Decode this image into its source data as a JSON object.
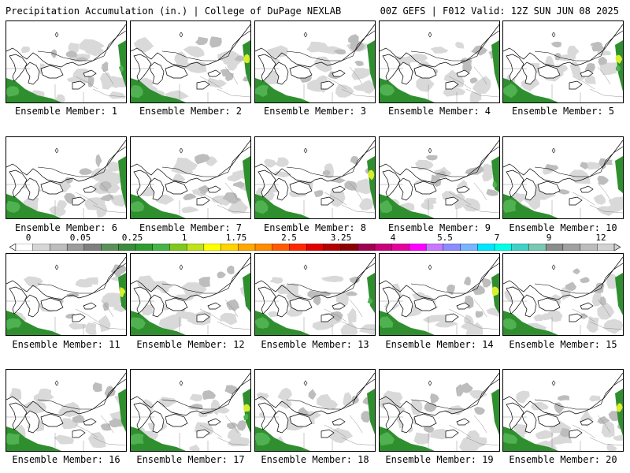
{
  "header": {
    "title": "Precipitation Accumulation (in.) | College of DuPage NEXLAB",
    "run_info": "00Z GEFS | F012 Valid: 12Z SUN JUN 08 2025"
  },
  "colorbar": {
    "labels": [
      "0",
      "0.05",
      "0.25",
      "1",
      "1.75",
      "2.5",
      "3.25",
      "4",
      "5.5",
      "7",
      "9",
      "12"
    ],
    "colors": [
      "#ffffff",
      "#d6d6d6",
      "#bdbdbd",
      "#9c9c9c",
      "#7f7f7f",
      "#5a8f5a",
      "#3c8a3c",
      "#2e9c2e",
      "#47b247",
      "#7fc820",
      "#bfe21a",
      "#ffff00",
      "#ffd400",
      "#ffa800",
      "#ff8c00",
      "#ff5a00",
      "#ff2800",
      "#e00000",
      "#b40000",
      "#8c0000",
      "#a00050",
      "#c8007a",
      "#e6009c",
      "#ff00ff",
      "#c878ff",
      "#8c8cff",
      "#78b4ff",
      "#00e6ff",
      "#00ffe6",
      "#40d0c8",
      "#78c8b4",
      "#8c8c8c",
      "#a0a0a0",
      "#bcbcbc",
      "#d2d2d2"
    ]
  },
  "members": [
    {
      "label": "Ensemble Member: 1"
    },
    {
      "label": "Ensemble Member: 2"
    },
    {
      "label": "Ensemble Member: 3"
    },
    {
      "label": "Ensemble Member: 4"
    },
    {
      "label": "Ensemble Member: 5"
    },
    {
      "label": "Ensemble Member: 6"
    },
    {
      "label": "Ensemble Member: 7"
    },
    {
      "label": "Ensemble Member: 8"
    },
    {
      "label": "Ensemble Member: 9"
    },
    {
      "label": "Ensemble Member: 10"
    },
    {
      "label": "Ensemble Member: 11"
    },
    {
      "label": "Ensemble Member: 12"
    },
    {
      "label": "Ensemble Member: 13"
    },
    {
      "label": "Ensemble Member: 14"
    },
    {
      "label": "Ensemble Member: 15"
    },
    {
      "label": "Ensemble Member: 16"
    },
    {
      "label": "Ensemble Member: 17"
    },
    {
      "label": "Ensemble Member: 18"
    },
    {
      "label": "Ensemble Member: 19"
    },
    {
      "label": "Ensemble Member: 20"
    }
  ],
  "fill_colors": {
    "light_gray": "#d9d9d9",
    "mid_gray": "#bdbdbd",
    "dark_green": "#2f8f2f",
    "green": "#4fb14f",
    "yellow_green": "#d8ef2a"
  }
}
